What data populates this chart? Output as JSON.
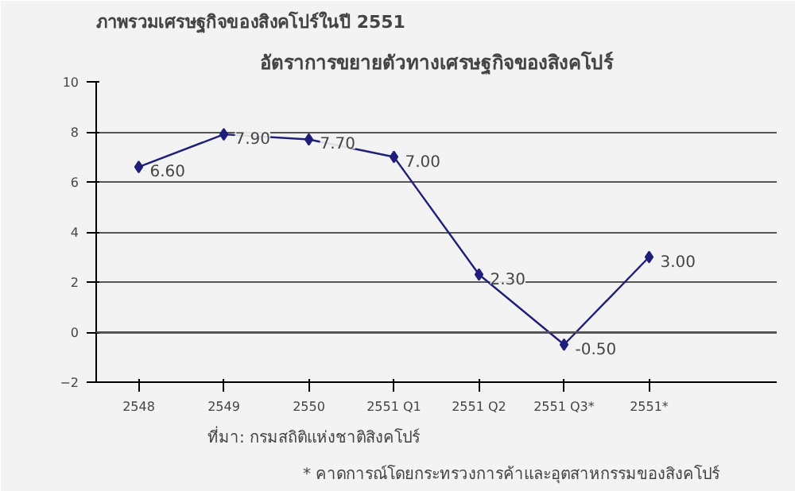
{
  "chart_data": {
    "type": "line",
    "title": "อัตราการขยายตัวทางเศรษฐกิจของสิงคโปร์",
    "annotations": [
      "ภาพรวมเศรษฐกิจของสิงคโปร์ในปี 2551",
      "ที่มา: กรมสถิติแห่งชาติสิงคโปร์",
      "* คาดการณ์โดยกระทรวงการค้าและอุตสาหกรรมของสิงคโปร์"
    ],
    "categories": [
      "2548",
      "2549",
      "2550",
      "2551 Q1",
      "2551 Q2",
      "2551 Q3*",
      "2551*"
    ],
    "series": [
      {
        "color": "#1f1f7a",
        "values": [
          6.6,
          7.9,
          7.7,
          7.0,
          2.3,
          -0.5,
          3.0
        ],
        "value_labels": [
          "6.60",
          "7.90",
          "7.70",
          "7.00",
          "2.30",
          "-0.50",
          "3.00"
        ]
      }
    ],
    "ylim": [
      -2,
      10
    ],
    "yticks": [
      -2,
      0,
      2,
      4,
      6,
      8,
      10
    ],
    "grid": "y",
    "marker": "diamond",
    "line_style": "solid"
  }
}
